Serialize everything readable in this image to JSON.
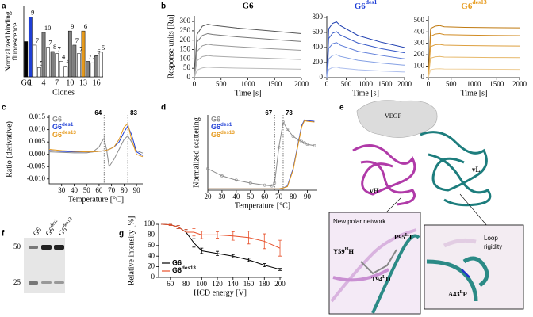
{
  "panels": [
    "a",
    "b",
    "c",
    "d",
    "e",
    "f",
    "g"
  ],
  "chart_data": [
    {
      "type": "bar",
      "ylabel": [
        "Normalized binding",
        "fluorescence"
      ],
      "xlabel": "Clones",
      "categories": [
        "G6",
        "1",
        null,
        null,
        "4",
        null,
        null,
        "7",
        null,
        null,
        "10",
        null,
        null,
        "13",
        null,
        null,
        "16",
        null
      ],
      "values": [
        0.5,
        0.85,
        0.45,
        0.13,
        0.63,
        0.42,
        0.36,
        0.33,
        0.22,
        0.15,
        0.65,
        0.45,
        0.33,
        0.65,
        0.22,
        0.2,
        0.3,
        0.35
      ],
      "annotations": [
        null,
        9,
        7,
        5,
        10,
        7,
        8,
        7,
        4,
        4,
        9,
        7,
        7,
        6,
        7,
        4,
        6,
        5
      ],
      "colors": [
        "#000000",
        "#1f3fd6",
        "#ffffff",
        "#ffffff",
        "#808080",
        "#ffffff",
        "#808080",
        "#ffffff",
        "#ffffff",
        "#ffffff",
        "#808080",
        "#808080",
        "#ffffff",
        "#e69a1c",
        "#808080",
        "#ffffff",
        "#808080",
        "#ffffff"
      ],
      "ylim": [
        0,
        1
      ]
    },
    {
      "type": "line",
      "title": "G6",
      "title_color": "#000000",
      "xlabel": "Time [s]",
      "ylabel": "Response units [Ru]",
      "x": [
        0,
        50,
        150,
        250,
        350,
        800,
        1400,
        2000
      ],
      "xlim": [
        0,
        2000
      ],
      "xticks": [
        0,
        500,
        1000,
        1500,
        2000
      ],
      "ylim": [
        0,
        330
      ],
      "yticks": [
        0,
        50,
        100,
        150,
        200,
        250,
        300
      ],
      "series": [
        {
          "color": "#555555",
          "values": [
            0,
            230,
            275,
            285,
            280,
            265,
            250,
            235
          ]
        },
        {
          "color": "#777777",
          "values": [
            0,
            190,
            225,
            235,
            230,
            218,
            205,
            193
          ]
        },
        {
          "color": "#999999",
          "values": [
            0,
            140,
            170,
            178,
            174,
            165,
            155,
            146
          ]
        },
        {
          "color": "#aaaaaa",
          "values": [
            0,
            90,
            112,
            118,
            115,
            109,
            103,
            97
          ]
        },
        {
          "color": "#bbbbbb",
          "values": [
            0,
            40,
            52,
            56,
            54,
            51,
            48,
            45
          ]
        }
      ]
    },
    {
      "type": "line",
      "title": "G6des1",
      "title_color": "#1f3fd6",
      "xlabel": "Time [s]",
      "x": [
        0,
        50,
        150,
        250,
        350,
        800,
        1400,
        2000
      ],
      "xlim": [
        0,
        2000
      ],
      "xticks": [
        0,
        500,
        1000,
        1500,
        2000
      ],
      "ylim": [
        0,
        820
      ],
      "yticks": [
        0,
        200,
        400,
        600,
        800
      ],
      "series": [
        {
          "color": "#1f3fb0",
          "values": [
            0,
            650,
            720,
            740,
            690,
            560,
            470,
            400
          ]
        },
        {
          "color": "#3a5cc8",
          "values": [
            0,
            520,
            590,
            610,
            565,
            460,
            385,
            330
          ]
        },
        {
          "color": "#5b7bd8",
          "values": [
            0,
            390,
            450,
            465,
            430,
            350,
            295,
            250
          ]
        },
        {
          "color": "#84a0e4",
          "values": [
            0,
            250,
            295,
            305,
            282,
            230,
            193,
            165
          ]
        },
        {
          "color": "#aebfee",
          "values": [
            0,
            110,
            135,
            140,
            128,
            105,
            88,
            75
          ]
        }
      ]
    },
    {
      "type": "line",
      "title": "G6des13",
      "title_color": "#e69a1c",
      "xlabel": "Time [s]",
      "x": [
        0,
        50,
        150,
        250,
        350,
        800,
        1400,
        2000
      ],
      "xlim": [
        0,
        2000
      ],
      "xticks": [
        0,
        500,
        1000,
        1500,
        2000
      ],
      "ylim": [
        0,
        540
      ],
      "yticks": [
        0,
        100,
        200,
        300,
        400,
        500
      ],
      "series": [
        {
          "color": "#c07a10",
          "values": [
            0,
            430,
            450,
            455,
            445,
            440,
            437,
            435
          ]
        },
        {
          "color": "#d18b22",
          "values": [
            0,
            360,
            380,
            385,
            376,
            372,
            369,
            367
          ]
        },
        {
          "color": "#dda040",
          "values": [
            0,
            270,
            287,
            290,
            284,
            280,
            278,
            276
          ]
        },
        {
          "color": "#e6b86a",
          "values": [
            0,
            170,
            182,
            185,
            180,
            178,
            176,
            175
          ]
        },
        {
          "color": "#efcf99",
          "values": [
            0,
            70,
            76,
            78,
            75,
            74,
            73,
            72
          ]
        }
      ]
    },
    {
      "type": "line",
      "xlabel": "Temperature [°C]",
      "ylabel": "Ratio (derivative)",
      "legend": "upper left",
      "x": [
        20,
        30,
        40,
        50,
        55,
        60,
        62,
        64,
        66,
        68,
        72,
        76,
        80,
        83,
        86,
        90,
        95
      ],
      "xlim": [
        20,
        95
      ],
      "xticks": [
        30,
        40,
        50,
        60,
        70,
        80,
        90
      ],
      "ylim": [
        -0.012,
        0.016
      ],
      "yticks": [
        {
          "value": -0.01,
          "label": "-0.010"
        },
        -0.005,
        {
          "value": 0,
          "label": "0.000"
        },
        0.005,
        {
          "value": 0.01,
          "label": "0.010"
        },
        0.015
      ],
      "vlines": [
        64,
        83
      ],
      "series": [
        {
          "name": "G6",
          "color": "#8c8c8c",
          "values": [
            0.001,
            0.0008,
            0.0006,
            0.0006,
            0.001,
            0.003,
            0.005,
            0.0065,
            0.002,
            -0.005,
            -0.002,
            0.002,
            0.006,
            0.0075,
            0.005,
            0.0015,
            0.0005
          ]
        },
        {
          "name": "G6des1",
          "color": "#1f3fd6",
          "values": [
            0.0015,
            0.0012,
            0.001,
            0.001,
            0.001,
            0.0012,
            0.0013,
            0.0015,
            0.0017,
            0.002,
            0.003,
            0.005,
            0.009,
            0.0115,
            0.008,
            0.001,
            -0.0005
          ]
        },
        {
          "name": "G6des13",
          "color": "#e69a1c",
          "values": [
            0.002,
            0.0015,
            0.0012,
            0.001,
            0.001,
            0.0012,
            0.0013,
            0.0015,
            0.0017,
            0.002,
            0.003,
            0.006,
            0.011,
            0.0125,
            0.006,
            0,
            -0.001
          ]
        }
      ]
    },
    {
      "type": "line",
      "xlabel": "Temperature [°C]",
      "ylabel": "Normalized scattering",
      "legend": "upper left",
      "x": [
        20,
        30,
        40,
        50,
        60,
        65,
        67,
        70,
        73,
        76,
        80,
        84,
        86,
        88,
        90,
        95
      ],
      "xlim": [
        20,
        97
      ],
      "xticks": [
        20,
        30,
        40,
        50,
        60,
        70,
        80,
        90
      ],
      "ylim": [
        0,
        1.05
      ],
      "vlines": [
        67,
        73
      ],
      "series": [
        {
          "name": "G6",
          "color": "#8c8c8c",
          "marker": "o",
          "values": [
            0.3,
            0.2,
            0.14,
            0.1,
            0.07,
            0.06,
            0.1,
            0.6,
            0.95,
            0.85,
            0.75,
            0.7,
            0.68,
            0.66,
            0.64,
            0.62
          ]
        },
        {
          "name": "G6des1",
          "color": "#1f3fd6",
          "values": [
            0.02,
            0.02,
            0.02,
            0.02,
            0.02,
            0.02,
            0.02,
            0.02,
            0.03,
            0.06,
            0.3,
            0.7,
            0.9,
            0.98,
            0.97,
            0.96
          ]
        },
        {
          "name": "G6des13",
          "color": "#e69a1c",
          "values": [
            0.02,
            0.02,
            0.02,
            0.02,
            0.02,
            0.02,
            0.02,
            0.02,
            0.03,
            0.05,
            0.28,
            0.68,
            0.88,
            0.97,
            0.96,
            0.95
          ]
        }
      ]
    },
    {
      "type": "line",
      "xlabel": "HCD energy [V]",
      "ylabel": "Relative intensity [%]",
      "legend": "lower left",
      "legend_marker": true,
      "x": [
        50,
        60,
        70,
        80,
        90,
        100,
        120,
        140,
        160,
        180,
        200
      ],
      "xlim": [
        45,
        202
      ],
      "xticks": [
        60,
        80,
        100,
        120,
        140,
        160,
        180,
        200
      ],
      "ylim": [
        0,
        100
      ],
      "yticks": [
        0,
        20,
        40,
        60,
        80,
        100
      ],
      "series": [
        {
          "name": "G6",
          "color": "#000000",
          "values": [
            100,
            99,
            95,
            85,
            65,
            50,
            45,
            40,
            33,
            23,
            15
          ],
          "errors": [
            0,
            1,
            3,
            5,
            8,
            5,
            4,
            3,
            3,
            3,
            2
          ]
        },
        {
          "name": "G6des13",
          "color": "#e8502a",
          "values": [
            100,
            99,
            95,
            85,
            85,
            80,
            80,
            78,
            75,
            68,
            55
          ],
          "errors": [
            0,
            1,
            3,
            5,
            7,
            7,
            6,
            8,
            12,
            14,
            15
          ]
        }
      ]
    }
  ],
  "gel": {
    "lanes": [
      "G6",
      "G6des1",
      "G6des13"
    ],
    "markers": [
      50,
      25
    ]
  },
  "structure": {
    "antigen": "VEGF",
    "light": "vL",
    "heavy": "vH",
    "inset_title": "New polar network",
    "mutations": [
      {
        "base": "P95",
        "sup": "L",
        "rest": "T"
      },
      {
        "base": "Y59",
        "sup": "H",
        "rest": "H"
      },
      {
        "base": "T94",
        "sup": "L",
        "rest": "D"
      },
      {
        "base": "A43",
        "sup": "L",
        "rest": "P"
      }
    ],
    "inset2_lines": [
      "Loop",
      "rigidity"
    ]
  }
}
